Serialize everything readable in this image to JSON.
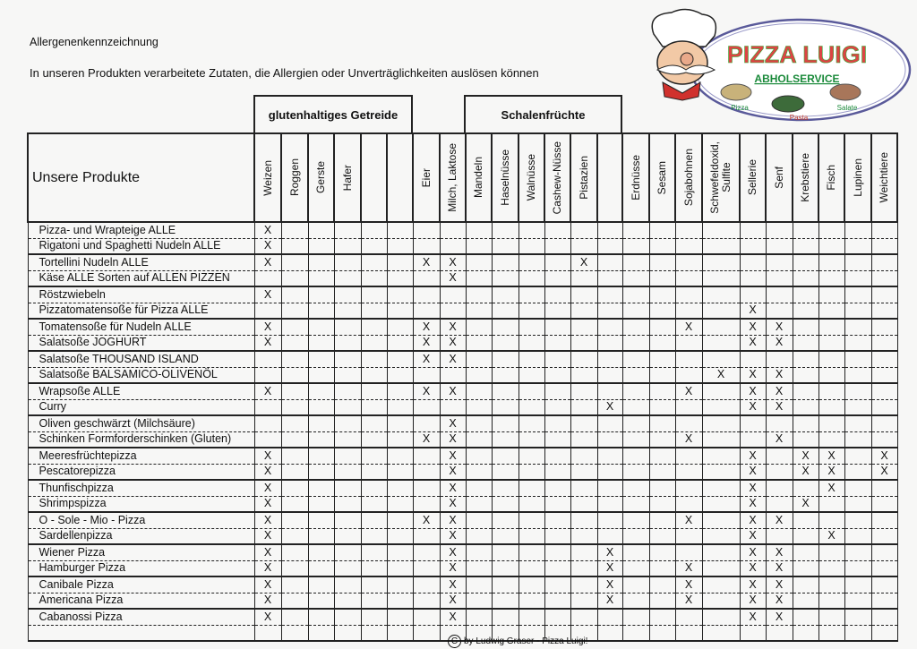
{
  "header": {
    "title": "Allergenenkennzeichnung",
    "subtitle": "In unseren Produkten verarbeitete Zutaten, die Allergien oder Unverträglichkeiten auslösen können"
  },
  "logo": {
    "name": "PIZZA LUIGI",
    "tagline": "ABHOLSERVICE",
    "items": [
      "Pizza",
      "Pasta",
      "Salate"
    ],
    "colors": {
      "ellipse": "#5a5a9a",
      "tagline": "#1a8a3a",
      "pasta": "#c0392b"
    }
  },
  "groups": {
    "gluten": "glutenhaltiges Getreide",
    "nuts": "Schalenfrüchte"
  },
  "table": {
    "product_header": "Unsere Produkte",
    "columns": [
      "Weizen",
      "Roggen",
      "Gerste",
      "Hafer",
      "",
      "",
      "Eier",
      "Milch, Laktose",
      "Mandeln",
      "Haselnüsse",
      "Walnüsse",
      "Cashew-Nüsse",
      "Pistazien",
      "",
      "Erdnüsse",
      "Sesam",
      "Sojabohnen",
      "Schwefeldoxid,\nSulfite",
      "Sellerie",
      "Senf",
      "Krebstiere",
      "Fisch",
      "Lupinen",
      "Weichtiere"
    ],
    "rows": [
      {
        "product": "Pizza- und Wrapteige ALLE",
        "cells": [
          "X",
          "",
          "",
          "",
          "",
          "",
          "",
          "",
          "",
          "",
          "",
          "",
          "",
          "",
          "",
          "",
          "",
          "",
          "",
          "",
          "",
          "",
          "",
          ""
        ]
      },
      {
        "product": "Rigatoni und Spaghetti Nudeln ALLE",
        "cells": [
          "X",
          "",
          "",
          "",
          "",
          "",
          "",
          "",
          "",
          "",
          "",
          "",
          "",
          "",
          "",
          "",
          "",
          "",
          "",
          "",
          "",
          "",
          "",
          ""
        ]
      },
      {
        "product": "Tortellini Nudeln ALLE",
        "cells": [
          "X",
          "",
          "",
          "",
          "",
          "",
          "X",
          "X",
          "",
          "",
          "",
          "",
          "X",
          "",
          "",
          "",
          "",
          "",
          "",
          "",
          "",
          "",
          "",
          ""
        ]
      },
      {
        "product": "Käse ALLE Sorten auf ALLEN PIZZEN",
        "cells": [
          "",
          "",
          "",
          "",
          "",
          "",
          "",
          "X",
          "",
          "",
          "",
          "",
          "",
          "",
          "",
          "",
          "",
          "",
          "",
          "",
          "",
          "",
          "",
          ""
        ]
      },
      {
        "product": "Röstzwiebeln",
        "cells": [
          "X",
          "",
          "",
          "",
          "",
          "",
          "",
          "",
          "",
          "",
          "",
          "",
          "",
          "",
          "",
          "",
          "",
          "",
          "",
          "",
          "",
          "",
          "",
          ""
        ]
      },
      {
        "product": "Pizzatomatensoße für Pizza ALLE",
        "cells": [
          "",
          "",
          "",
          "",
          "",
          "",
          "",
          "",
          "",
          "",
          "",
          "",
          "",
          "",
          "",
          "",
          "",
          "",
          "X",
          "",
          "",
          "",
          "",
          ""
        ]
      },
      {
        "product": "Tomatensoße für Nudeln ALLE",
        "cells": [
          "X",
          "",
          "",
          "",
          "",
          "",
          "X",
          "X",
          "",
          "",
          "",
          "",
          "",
          "",
          "",
          "",
          "X",
          "",
          "X",
          "X",
          "",
          "",
          "",
          ""
        ]
      },
      {
        "product": "Salatsoße JOGHURT",
        "cells": [
          "X",
          "",
          "",
          "",
          "",
          "",
          "X",
          "X",
          "",
          "",
          "",
          "",
          "",
          "",
          "",
          "",
          "",
          "",
          "X",
          "X",
          "",
          "",
          "",
          ""
        ]
      },
      {
        "product": "Salatsoße THOUSAND ISLAND",
        "cells": [
          "",
          "",
          "",
          "",
          "",
          "",
          "X",
          "X",
          "",
          "",
          "",
          "",
          "",
          "",
          "",
          "",
          "",
          "",
          "",
          "",
          "",
          "",
          "",
          ""
        ]
      },
      {
        "product": "Salatsoße BALSAMICO-OLIVENÖL",
        "cells": [
          "",
          "",
          "",
          "",
          "",
          "",
          "",
          "",
          "",
          "",
          "",
          "",
          "",
          "",
          "",
          "",
          "",
          "X",
          "X",
          "X",
          "",
          "",
          "",
          ""
        ]
      },
      {
        "product": "Wrapsoße ALLE",
        "cells": [
          "X",
          "",
          "",
          "",
          "",
          "",
          "X",
          "X",
          "",
          "",
          "",
          "",
          "",
          "",
          "",
          "",
          "X",
          "",
          "X",
          "X",
          "",
          "",
          "",
          ""
        ]
      },
      {
        "product": "Curry",
        "cells": [
          "",
          "",
          "",
          "",
          "",
          "",
          "",
          "",
          "",
          "",
          "",
          "",
          "",
          "X",
          "",
          "",
          "",
          "",
          "X",
          "X",
          "",
          "",
          "",
          ""
        ]
      },
      {
        "product": "Oliven geschwärzt      (Milchsäure)",
        "cells": [
          "",
          "",
          "",
          "",
          "",
          "",
          "",
          "X",
          "",
          "",
          "",
          "",
          "",
          "",
          "",
          "",
          "",
          "",
          "",
          "",
          "",
          "",
          "",
          ""
        ]
      },
      {
        "product": "Schinken Formforderschinken  (Gluten)",
        "cells": [
          "",
          "",
          "",
          "",
          "",
          "",
          "X",
          "X",
          "",
          "",
          "",
          "",
          "",
          "",
          "",
          "",
          "X",
          "",
          "",
          "X",
          "",
          "",
          "",
          ""
        ]
      },
      {
        "product": "Meeresfrüchtepizza",
        "cells": [
          "X",
          "",
          "",
          "",
          "",
          "",
          "",
          "X",
          "",
          "",
          "",
          "",
          "",
          "",
          "",
          "",
          "",
          "",
          "X",
          "",
          "X",
          "X",
          "",
          "X"
        ]
      },
      {
        "product": "Pescatorepizza",
        "cells": [
          "X",
          "",
          "",
          "",
          "",
          "",
          "",
          "X",
          "",
          "",
          "",
          "",
          "",
          "",
          "",
          "",
          "",
          "",
          "X",
          "",
          "X",
          "X",
          "",
          "X"
        ]
      },
      {
        "product": "Thunfischpizza",
        "cells": [
          "X",
          "",
          "",
          "",
          "",
          "",
          "",
          "X",
          "",
          "",
          "",
          "",
          "",
          "",
          "",
          "",
          "",
          "",
          "X",
          "",
          "",
          "X",
          "",
          ""
        ]
      },
      {
        "product": "Shrimpspizza",
        "cells": [
          "X",
          "",
          "",
          "",
          "",
          "",
          "",
          "X",
          "",
          "",
          "",
          "",
          "",
          "",
          "",
          "",
          "",
          "",
          "X",
          "",
          "X",
          "",
          "",
          ""
        ]
      },
      {
        "product": "O - Sole - Mio - Pizza",
        "cells": [
          "X",
          "",
          "",
          "",
          "",
          "",
          "X",
          "X",
          "",
          "",
          "",
          "",
          "",
          "",
          "",
          "",
          "X",
          "",
          "X",
          "X",
          "",
          "",
          "",
          ""
        ]
      },
      {
        "product": "Sardellenpizza",
        "cells": [
          "X",
          "",
          "",
          "",
          "",
          "",
          "",
          "X",
          "",
          "",
          "",
          "",
          "",
          "",
          "",
          "",
          "",
          "",
          "X",
          "",
          "",
          "X",
          "",
          ""
        ]
      },
      {
        "product": "Wiener Pizza",
        "cells": [
          "X",
          "",
          "",
          "",
          "",
          "",
          "",
          "X",
          "",
          "",
          "",
          "",
          "",
          "X",
          "",
          "",
          "",
          "",
          "X",
          "X",
          "",
          "",
          "",
          ""
        ]
      },
      {
        "product": "Hamburger Pizza",
        "cells": [
          "X",
          "",
          "",
          "",
          "",
          "",
          "",
          "X",
          "",
          "",
          "",
          "",
          "",
          "X",
          "",
          "",
          "X",
          "",
          "X",
          "X",
          "",
          "",
          "",
          ""
        ]
      },
      {
        "product": "Canibale Pizza",
        "cells": [
          "X",
          "",
          "",
          "",
          "",
          "",
          "",
          "X",
          "",
          "",
          "",
          "",
          "",
          "X",
          "",
          "",
          "X",
          "",
          "X",
          "X",
          "",
          "",
          "",
          ""
        ]
      },
      {
        "product": "Americana Pizza",
        "cells": [
          "X",
          "",
          "",
          "",
          "",
          "",
          "",
          "X",
          "",
          "",
          "",
          "",
          "",
          "X",
          "",
          "",
          "X",
          "",
          "X",
          "X",
          "",
          "",
          "",
          ""
        ]
      },
      {
        "product": "Cabanossi Pizza",
        "cells": [
          "X",
          "",
          "",
          "",
          "",
          "",
          "",
          "X",
          "",
          "",
          "",
          "",
          "",
          "",
          "",
          "",
          "",
          "",
          "X",
          "X",
          "",
          "",
          "",
          ""
        ]
      },
      {
        "product": "",
        "cells": [
          "",
          "",
          "",
          "",
          "",
          "",
          "",
          "",
          "",
          "",
          "",
          "",
          "",
          "",
          "",
          "",
          "",
          "",
          "",
          "",
          "",
          "",
          "",
          ""
        ]
      }
    ]
  },
  "footer": {
    "copyright_symbol": "C",
    "text": "by Ludwig Graser - Pizza Luigi!"
  }
}
